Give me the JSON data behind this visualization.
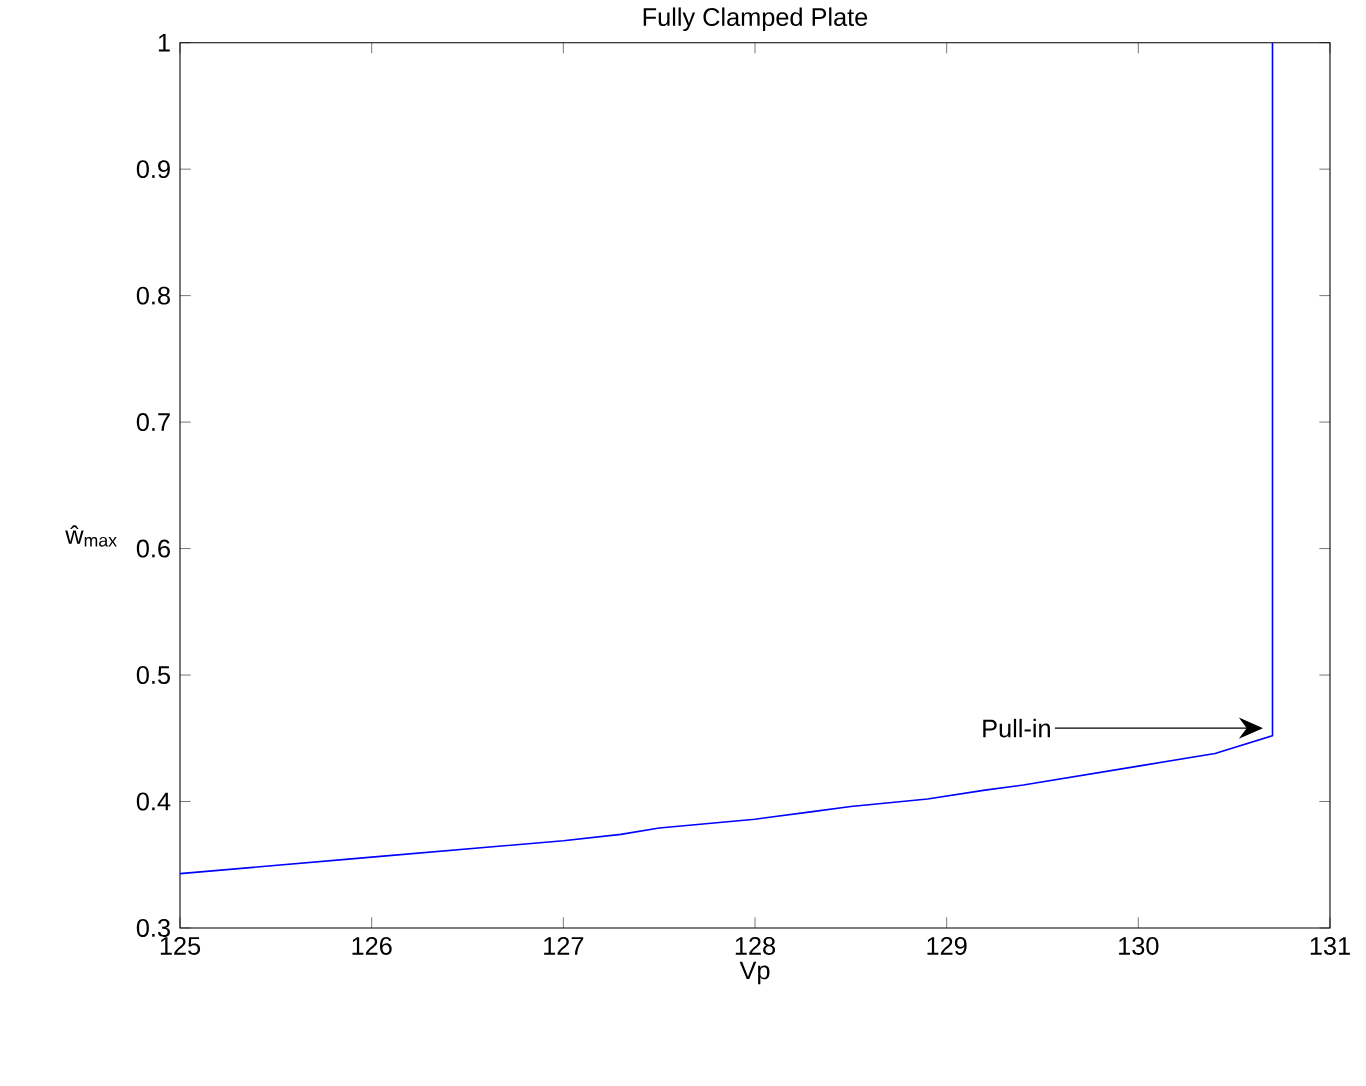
{
  "chart_data": {
    "type": "line",
    "title": "Fully Clamped Plate",
    "xlabel": "Vp",
    "ylabel": "ŵ$_{max}$",
    "x": [
      125,
      126,
      127,
      127.3,
      127.5,
      128,
      128.3,
      128.5,
      128.9,
      129.2,
      129.4,
      130,
      130.4,
      130.7,
      130.7
    ],
    "series": [
      {
        "color": "#0000ff",
        "values": [
          0.343,
          0.356,
          0.369,
          0.374,
          0.379,
          0.386,
          0.392,
          0.396,
          0.402,
          0.409,
          0.413,
          0.428,
          0.438,
          0.452,
          1.0
        ]
      }
    ],
    "xlim": [
      125,
      131
    ],
    "ylim": [
      0.3,
      1
    ],
    "xticks": [
      125,
      126,
      127,
      128,
      129,
      130,
      131
    ],
    "yticks": [
      0.3,
      0.4,
      0.5,
      0.6,
      0.7,
      0.8,
      0.9,
      1
    ],
    "annotations": [
      {
        "text": "Pull-in",
        "x": 130.65,
        "y": 0.458
      }
    ],
    "grid": false,
    "marker": "none",
    "line_style": "solid"
  }
}
